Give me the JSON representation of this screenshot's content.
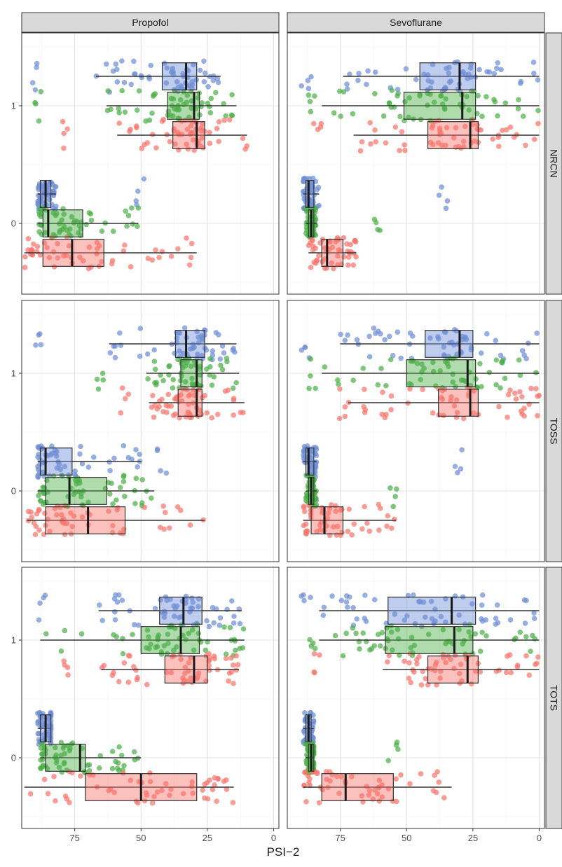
{
  "chart_data": {
    "type": "boxplot",
    "xlabel": "PSI−2",
    "x_reversed": true,
    "xlim": [
      95,
      -2
    ],
    "x_ticks": [
      75,
      50,
      25,
      0
    ],
    "y_ticks": [
      0,
      1
    ],
    "colors": {
      "red": "#F8766D",
      "green": "#4DAF4A",
      "blue": "#6F8FD6"
    },
    "columns": [
      "Propofol",
      "Sevoflurane"
    ],
    "rows": [
      "NRCN",
      "TOSS",
      "TOTS"
    ],
    "panels": [
      {
        "row": 0,
        "col": 0,
        "groups": [
          {
            "y": 1,
            "color": "blue",
            "q1": 29,
            "median": 33,
            "q3": 42,
            "lo": 20,
            "hi": 67,
            "out_hi": 90
          },
          {
            "y": 1,
            "color": "green",
            "q1": 28,
            "median": 30,
            "q3": 40,
            "lo": 14,
            "hi": 63,
            "out_hi": 88
          },
          {
            "y": 1,
            "color": "red",
            "q1": 26,
            "median": 29,
            "q3": 38,
            "lo": 10,
            "hi": 59,
            "out_hi": 78
          },
          {
            "y": 0,
            "color": "blue",
            "q1": 84,
            "median": 86,
            "q3": 88,
            "lo": 82,
            "hi": 89,
            "out_lo": 50
          },
          {
            "y": 0,
            "color": "green",
            "q1": 72,
            "median": 85,
            "q3": 87,
            "lo": 51,
            "hi": 89
          },
          {
            "y": 0,
            "color": "red",
            "q1": 64,
            "median": 76,
            "q3": 87,
            "lo": 29,
            "hi": 94
          }
        ]
      },
      {
        "row": 0,
        "col": 1,
        "groups": [
          {
            "y": 1,
            "color": "blue",
            "q1": 24,
            "median": 30,
            "q3": 45,
            "lo": 0,
            "hi": 74,
            "out_hi": 88
          },
          {
            "y": 1,
            "color": "green",
            "q1": 24,
            "median": 29,
            "q3": 51,
            "lo": 0,
            "hi": 82,
            "out_hi": 85
          },
          {
            "y": 1,
            "color": "red",
            "q1": 23,
            "median": 26,
            "q3": 42,
            "lo": 0,
            "hi": 70,
            "out_hi": 84
          },
          {
            "y": 0,
            "color": "blue",
            "q1": 85,
            "median": 87,
            "q3": 88,
            "lo": 83,
            "hi": 89,
            "out_lo": 36
          },
          {
            "y": 0,
            "color": "green",
            "q1": 85,
            "median": 86,
            "q3": 87,
            "lo": 84,
            "hi": 88,
            "out_lo": 62
          },
          {
            "y": 0,
            "color": "red",
            "q1": 74,
            "median": 80,
            "q3": 82,
            "lo": 69,
            "hi": 87
          }
        ]
      },
      {
        "row": 1,
        "col": 0,
        "groups": [
          {
            "y": 1,
            "color": "blue",
            "q1": 26,
            "median": 33,
            "q3": 37,
            "lo": 14,
            "hi": 62,
            "out_hi": 88
          },
          {
            "y": 1,
            "color": "green",
            "q1": 27,
            "median": 29,
            "q3": 35,
            "lo": 13,
            "hi": 48,
            "out_hi": 66
          },
          {
            "y": 1,
            "color": "red",
            "q1": 27,
            "median": 29,
            "q3": 36,
            "lo": 11,
            "hi": 47,
            "out_hi": 56
          },
          {
            "y": 0,
            "color": "blue",
            "q1": 76,
            "median": 86,
            "q3": 88,
            "lo": 50,
            "hi": 89,
            "out_lo": 42
          },
          {
            "y": 0,
            "color": "green",
            "q1": 63,
            "median": 77,
            "q3": 86,
            "lo": 45,
            "hi": 89
          },
          {
            "y": 0,
            "color": "red",
            "q1": 56,
            "median": 70,
            "q3": 86,
            "lo": 26,
            "hi": 93
          }
        ]
      },
      {
        "row": 1,
        "col": 1,
        "groups": [
          {
            "y": 1,
            "color": "blue",
            "q1": 25,
            "median": 30,
            "q3": 43,
            "lo": 0,
            "hi": 75,
            "out_hi": 88
          },
          {
            "y": 1,
            "color": "green",
            "q1": 24,
            "median": 27,
            "q3": 50,
            "lo": 0,
            "hi": 82,
            "out_hi": 86
          },
          {
            "y": 1,
            "color": "red",
            "q1": 23,
            "median": 26,
            "q3": 38,
            "lo": 0,
            "hi": 72,
            "out_hi": 74
          },
          {
            "y": 0,
            "color": "blue",
            "q1": 85,
            "median": 87,
            "q3": 88,
            "lo": 84,
            "hi": 89,
            "out_lo": 30
          },
          {
            "y": 0,
            "color": "green",
            "q1": 85,
            "median": 86,
            "q3": 87,
            "lo": 84,
            "hi": 88,
            "out_lo": 55
          },
          {
            "y": 0,
            "color": "red",
            "q1": 74,
            "median": 81,
            "q3": 86,
            "lo": 54,
            "hi": 89
          }
        ]
      },
      {
        "row": 2,
        "col": 0,
        "groups": [
          {
            "y": 1,
            "color": "blue",
            "q1": 27,
            "median": 34,
            "q3": 43,
            "lo": 12,
            "hi": 66,
            "out_hi": 88
          },
          {
            "y": 1,
            "color": "green",
            "q1": 28,
            "median": 35,
            "q3": 50,
            "lo": 11,
            "hi": 88
          },
          {
            "y": 1,
            "color": "red",
            "q1": 25,
            "median": 30,
            "q3": 41,
            "lo": 13,
            "hi": 65,
            "out_hi": 78
          },
          {
            "y": 0,
            "color": "blue",
            "q1": 84,
            "median": 86,
            "q3": 88,
            "lo": 84,
            "hi": 89
          },
          {
            "y": 0,
            "color": "green",
            "q1": 71,
            "median": 73,
            "q3": 86,
            "lo": 50,
            "hi": 88,
            "out_lo": 58
          },
          {
            "y": 0,
            "color": "red",
            "q1": 29,
            "median": 50,
            "q3": 71,
            "lo": 15,
            "hi": 94
          }
        ]
      },
      {
        "row": 2,
        "col": 1,
        "groups": [
          {
            "y": 1,
            "color": "blue",
            "q1": 24,
            "median": 33,
            "q3": 57,
            "lo": 0,
            "hi": 83,
            "out_hi": 88
          },
          {
            "y": 1,
            "color": "green",
            "q1": 25,
            "median": 32,
            "q3": 58,
            "lo": 0,
            "hi": 83,
            "out_hi": 86
          },
          {
            "y": 1,
            "color": "red",
            "q1": 23,
            "median": 27,
            "q3": 42,
            "lo": 0,
            "hi": 59,
            "out_hi": 84
          },
          {
            "y": 0,
            "color": "blue",
            "q1": 86,
            "median": 87,
            "q3": 88,
            "lo": 85,
            "hi": 89
          },
          {
            "y": 0,
            "color": "green",
            "q1": 85,
            "median": 86,
            "q3": 87,
            "lo": 85,
            "hi": 88,
            "out_lo": 55
          },
          {
            "y": 0,
            "color": "red",
            "q1": 55,
            "median": 73,
            "q3": 82,
            "lo": 33,
            "hi": 89
          }
        ]
      }
    ]
  }
}
